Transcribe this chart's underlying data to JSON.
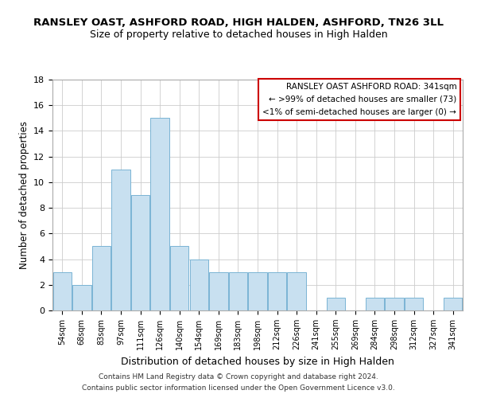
{
  "title": "RANSLEY OAST, ASHFORD ROAD, HIGH HALDEN, ASHFORD, TN26 3LL",
  "subtitle": "Size of property relative to detached houses in High Halden",
  "xlabel": "Distribution of detached houses by size in High Halden",
  "ylabel": "Number of detached properties",
  "bar_color": "#c8e0f0",
  "bar_edge_color": "#7ab4d4",
  "categories": [
    "54sqm",
    "68sqm",
    "83sqm",
    "97sqm",
    "111sqm",
    "126sqm",
    "140sqm",
    "154sqm",
    "169sqm",
    "183sqm",
    "198sqm",
    "212sqm",
    "226sqm",
    "241sqm",
    "255sqm",
    "269sqm",
    "284sqm",
    "298sqm",
    "312sqm",
    "327sqm",
    "341sqm"
  ],
  "values": [
    3,
    2,
    5,
    11,
    9,
    15,
    5,
    4,
    3,
    3,
    3,
    3,
    3,
    0,
    1,
    0,
    1,
    1,
    1,
    0,
    1
  ],
  "ylim": [
    0,
    18
  ],
  "yticks": [
    0,
    2,
    4,
    6,
    8,
    10,
    12,
    14,
    16,
    18
  ],
  "annotation_title": "RANSLEY OAST ASHFORD ROAD: 341sqm",
  "annotation_line1": "← >99% of detached houses are smaller (73)",
  "annotation_line2": "<1% of semi-detached houses are larger (0) →",
  "annotation_box_color": "#ffffff",
  "annotation_box_edge": "#cc0000",
  "footer1": "Contains HM Land Registry data © Crown copyright and database right 2024.",
  "footer2": "Contains public sector information licensed under the Open Government Licence v3.0."
}
